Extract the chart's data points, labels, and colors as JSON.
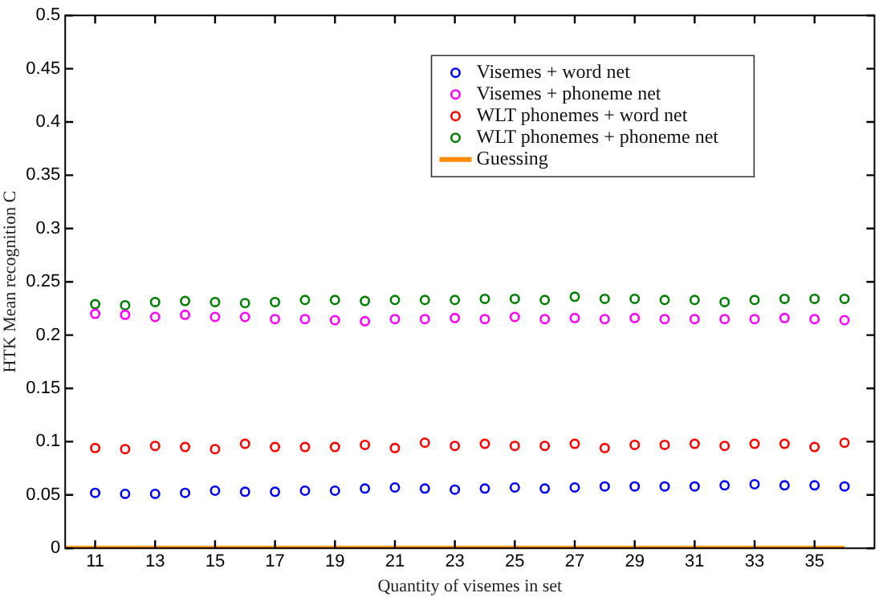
{
  "chart_data": {
    "type": "scatter",
    "xlabel": "Quantity of visemes in set",
    "ylabel": "HTK Mean recognition C",
    "x": [
      11,
      12,
      13,
      14,
      15,
      16,
      17,
      18,
      19,
      20,
      21,
      22,
      23,
      24,
      25,
      26,
      27,
      28,
      29,
      30,
      31,
      32,
      33,
      34,
      35,
      36
    ],
    "series": [
      {
        "name": "Visemes + word net",
        "color": "#0000ff",
        "values": [
          0.052,
          0.051,
          0.051,
          0.052,
          0.054,
          0.053,
          0.053,
          0.054,
          0.054,
          0.056,
          0.057,
          0.056,
          0.055,
          0.056,
          0.057,
          0.056,
          0.057,
          0.058,
          0.058,
          0.058,
          0.058,
          0.059,
          0.06,
          0.059,
          0.059,
          0.058
        ]
      },
      {
        "name": "Visemes + phoneme net",
        "color": "#ff00ff",
        "values": [
          0.22,
          0.219,
          0.217,
          0.219,
          0.217,
          0.217,
          0.215,
          0.215,
          0.214,
          0.213,
          0.215,
          0.215,
          0.216,
          0.215,
          0.217,
          0.215,
          0.216,
          0.215,
          0.216,
          0.215,
          0.215,
          0.215,
          0.215,
          0.216,
          0.215,
          0.214
        ]
      },
      {
        "name": "WLT phonemes + word net",
        "color": "#ff0000",
        "values": [
          0.094,
          0.093,
          0.096,
          0.095,
          0.093,
          0.098,
          0.095,
          0.095,
          0.095,
          0.097,
          0.094,
          0.099,
          0.096,
          0.098,
          0.096,
          0.096,
          0.098,
          0.094,
          0.097,
          0.097,
          0.098,
          0.096,
          0.098,
          0.098,
          0.095,
          0.099
        ]
      },
      {
        "name": "WLT phonemes + phoneme net",
        "color": "#008000",
        "values": [
          0.229,
          0.228,
          0.231,
          0.232,
          0.231,
          0.23,
          0.231,
          0.233,
          0.233,
          0.232,
          0.233,
          0.233,
          0.233,
          0.234,
          0.234,
          0.233,
          0.236,
          0.234,
          0.234,
          0.233,
          0.233,
          0.231,
          0.233,
          0.234,
          0.234,
          0.234
        ]
      },
      {
        "name": "Guessing",
        "type": "line",
        "color": "#ff8c00",
        "marker": "none",
        "x": [
          10,
          36
        ],
        "values": [
          0,
          0
        ]
      }
    ],
    "marker": "circle",
    "legend": "top right",
    "grid": false,
    "xlim": [
      10,
      37
    ],
    "xticks": [
      11,
      13,
      15,
      17,
      19,
      21,
      23,
      25,
      27,
      29,
      31,
      33,
      35
    ],
    "ylim": [
      0,
      0.5
    ],
    "yticks": [
      0,
      0.05,
      0.1,
      0.15,
      0.2,
      0.25,
      0.3,
      0.35,
      0.4,
      0.45,
      0.5
    ]
  }
}
